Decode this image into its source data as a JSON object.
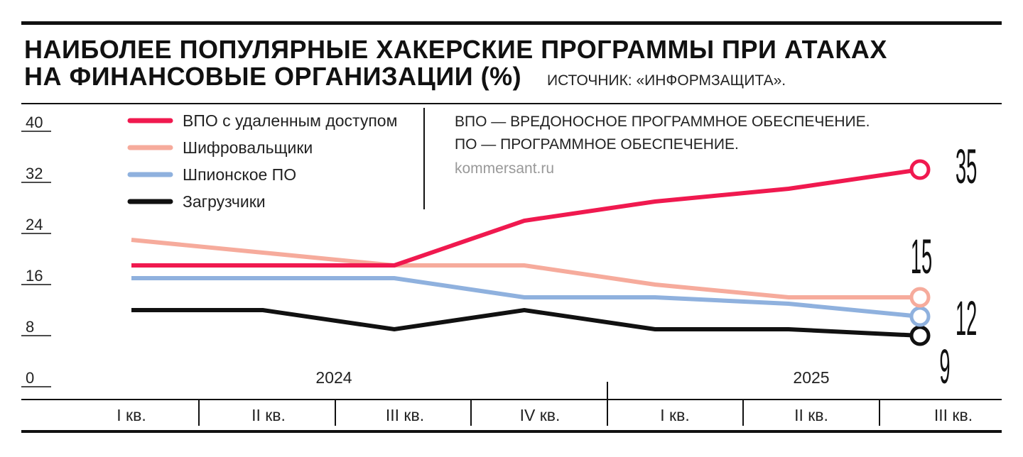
{
  "chart_data": {
    "type": "line",
    "title": [
      "НАИБОЛЕЕ ПОПУЛЯРНЫЕ ХАКЕРСКИЕ ПРОГРАММЫ ПРИ АТАКАХ",
      "НА ФИНАНСОВЫЕ ОРГАНИЗАЦИИ (%)"
    ],
    "source": "ИСТОЧНИК: «ИНФОРМЗАЩИТА».",
    "notes": [
      "ВПО — ВРЕДОНОСНОЕ ПРОГРАММНОЕ ОБЕСПЕЧЕНИЕ.",
      "ПО — ПРОГРАММНОЕ ОБЕСПЕЧЕНИЕ."
    ],
    "site": "kommersant.ru",
    "ylim": [
      0,
      40
    ],
    "yticks": [
      "0",
      "8",
      "16",
      "24",
      "32",
      "40"
    ],
    "categories": [
      "I кв.",
      "II кв.",
      "III кв.",
      "IV кв.",
      "I кв.",
      "II кв.",
      "III кв."
    ],
    "years": [
      "2024",
      "2025"
    ],
    "series": [
      {
        "name": "ВПО с удаленным доступом",
        "color": "#f0194f",
        "values": [
          20,
          20,
          20,
          27,
          30,
          32,
          35
        ],
        "end_label": "35"
      },
      {
        "name": "Шифровальщики",
        "color": "#f6ab9c",
        "values": [
          24,
          22,
          20,
          20,
          17,
          15,
          15
        ],
        "end_label": "15"
      },
      {
        "name": "Шпионское ПО",
        "color": "#8fb1de",
        "values": [
          18,
          18,
          18,
          15,
          15,
          14,
          12
        ],
        "end_label": "12"
      },
      {
        "name": "Загрузчики",
        "color": "#111111",
        "values": [
          13,
          13,
          10,
          13,
          10,
          10,
          9
        ],
        "end_label": "9"
      }
    ]
  }
}
